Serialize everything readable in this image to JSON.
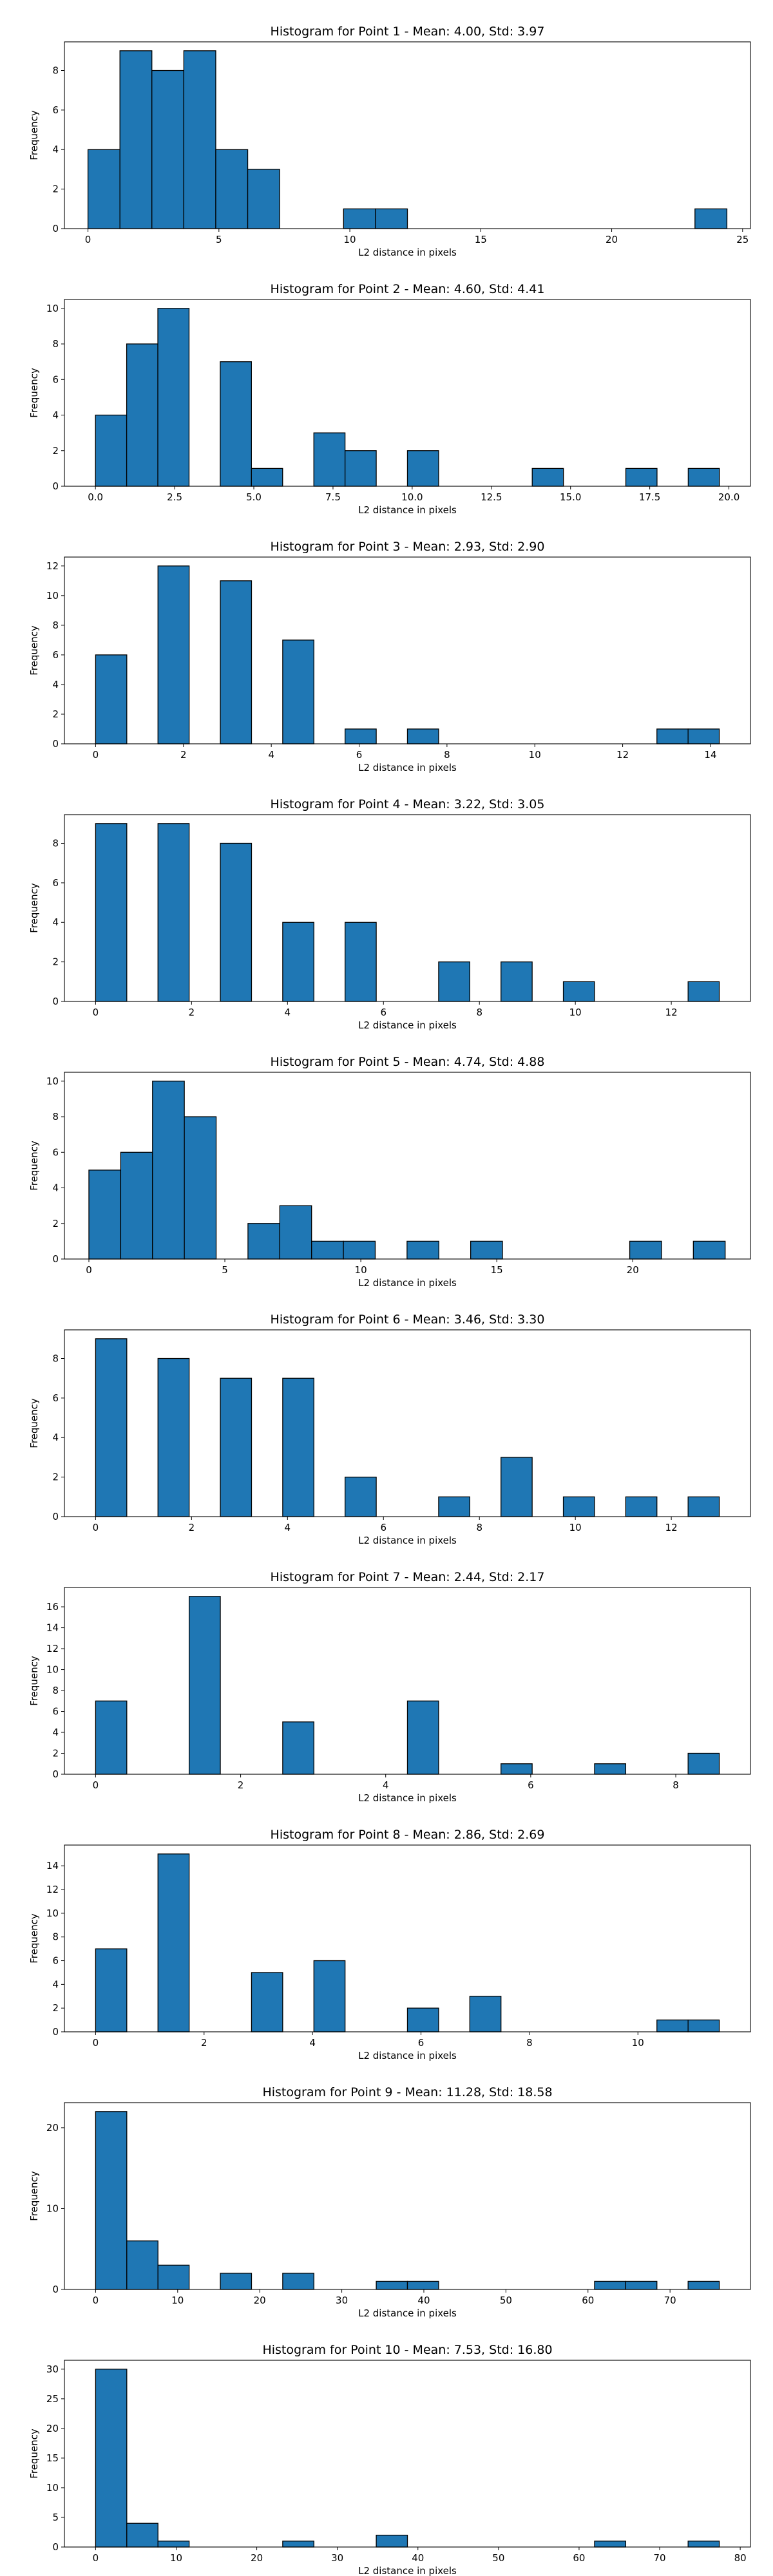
{
  "chart_data": [
    {
      "type": "bar",
      "title": "Histogram for Point 1 - Mean: 4.00, Std: 3.97",
      "xlabel": "L2 distance in pixels",
      "ylabel": "Frequency",
      "bin_start": 0,
      "bin_width": 1.22,
      "counts": [
        4,
        9,
        8,
        9,
        4,
        3,
        0,
        0,
        1,
        1,
        0,
        0,
        0,
        0,
        0,
        0,
        0,
        0,
        0,
        1
      ],
      "xlim": [
        -0.9,
        25.3
      ],
      "ylim": [
        0,
        9.45
      ],
      "xticks": [
        "0",
        "5",
        "10",
        "15",
        "20",
        "25"
      ],
      "yticks": [
        "0",
        "2",
        "4",
        "6",
        "8"
      ],
      "grid": false,
      "legend": "none",
      "color": "#1f77b4"
    },
    {
      "type": "bar",
      "title": "Histogram for Point 2 - Mean: 4.60, Std: 4.41",
      "xlabel": "L2 distance in pixels",
      "ylabel": "Frequency",
      "bin_start": 0,
      "bin_width": 0.985,
      "counts": [
        4,
        8,
        10,
        0,
        7,
        1,
        0,
        3,
        2,
        0,
        2,
        0,
        0,
        0,
        1,
        0,
        0,
        1,
        0,
        1
      ],
      "xlim": [
        -0.98,
        20.68
      ],
      "ylim": [
        0,
        10.5
      ],
      "xticks": [
        "0.0",
        "2.5",
        "5.0",
        "7.5",
        "10.0",
        "12.5",
        "15.0",
        "17.5",
        "20.0"
      ],
      "yticks": [
        "0",
        "2",
        "4",
        "6",
        "8",
        "10"
      ],
      "grid": false,
      "legend": "none",
      "color": "#1f77b4"
    },
    {
      "type": "bar",
      "title": "Histogram for Point 3 - Mean: 2.93, Std: 2.90",
      "xlabel": "L2 distance in pixels",
      "ylabel": "Frequency",
      "bin_start": 0,
      "bin_width": 0.71,
      "counts": [
        6,
        0,
        12,
        0,
        11,
        0,
        7,
        0,
        1,
        0,
        1,
        0,
        0,
        0,
        0,
        0,
        0,
        0,
        1,
        1
      ],
      "xlim": [
        -0.71,
        14.91
      ],
      "ylim": [
        0,
        12.6
      ],
      "xticks": [
        "0",
        "2",
        "4",
        "6",
        "8",
        "10",
        "12",
        "14"
      ],
      "yticks": [
        "0",
        "2",
        "4",
        "6",
        "8",
        "10",
        "12"
      ],
      "grid": false,
      "legend": "none",
      "color": "#1f77b4"
    },
    {
      "type": "bar",
      "title": "Histogram for Point 4 - Mean: 3.22, Std: 3.05",
      "xlabel": "L2 distance in pixels",
      "ylabel": "Frequency",
      "bin_start": 0,
      "bin_width": 0.65,
      "counts": [
        9,
        0,
        9,
        0,
        8,
        0,
        4,
        0,
        4,
        0,
        0,
        2,
        0,
        2,
        0,
        1,
        0,
        0,
        0,
        1
      ],
      "xlim": [
        -0.65,
        13.65
      ],
      "ylim": [
        0,
        9.45
      ],
      "xticks": [
        "0",
        "2",
        "4",
        "6",
        "8",
        "10",
        "12"
      ],
      "yticks": [
        "0",
        "2",
        "4",
        "6",
        "8"
      ],
      "grid": false,
      "legend": "none",
      "color": "#1f77b4"
    },
    {
      "type": "bar",
      "title": "Histogram for Point 5 - Mean: 4.74, Std: 4.88",
      "xlabel": "L2 distance in pixels",
      "ylabel": "Frequency",
      "bin_start": 0,
      "bin_width": 1.17,
      "counts": [
        5,
        6,
        10,
        8,
        0,
        2,
        3,
        1,
        1,
        0,
        1,
        0,
        1,
        0,
        0,
        0,
        0,
        1,
        0,
        1
      ],
      "xlim": [
        -0.9,
        24.33
      ],
      "ylim": [
        0,
        10.5
      ],
      "xticks": [
        "0",
        "5",
        "10",
        "15",
        "20"
      ],
      "yticks": [
        "0",
        "2",
        "4",
        "6",
        "8",
        "10"
      ],
      "grid": false,
      "legend": "none",
      "color": "#1f77b4"
    },
    {
      "type": "bar",
      "title": "Histogram for Point 6 - Mean: 3.46, Std: 3.30",
      "xlabel": "L2 distance in pixels",
      "ylabel": "Frequency",
      "bin_start": 0,
      "bin_width": 0.65,
      "counts": [
        9,
        0,
        8,
        0,
        7,
        0,
        7,
        0,
        2,
        0,
        0,
        1,
        0,
        3,
        0,
        1,
        0,
        1,
        0,
        1
      ],
      "xlim": [
        -0.65,
        13.65
      ],
      "ylim": [
        0,
        9.45
      ],
      "xticks": [
        "0",
        "2",
        "4",
        "6",
        "8",
        "10",
        "12"
      ],
      "yticks": [
        "0",
        "2",
        "4",
        "6",
        "8"
      ],
      "grid": false,
      "legend": "none",
      "color": "#1f77b4"
    },
    {
      "type": "bar",
      "title": "Histogram for Point 7 - Mean: 2.44, Std: 2.17",
      "xlabel": "L2 distance in pixels",
      "ylabel": "Frequency",
      "bin_start": 0,
      "bin_width": 0.43,
      "counts": [
        7,
        0,
        0,
        17,
        0,
        0,
        5,
        0,
        0,
        0,
        7,
        0,
        0,
        1,
        0,
        0,
        1,
        0,
        0,
        2
      ],
      "xlim": [
        -0.43,
        9.03
      ],
      "ylim": [
        0,
        17.85
      ],
      "xticks": [
        "0",
        "2",
        "4",
        "6",
        "8"
      ],
      "yticks": [
        "0",
        "2",
        "4",
        "6",
        "8",
        "10",
        "12",
        "14",
        "16"
      ],
      "grid": false,
      "legend": "none",
      "color": "#1f77b4"
    },
    {
      "type": "bar",
      "title": "Histogram for Point 8 - Mean: 2.86, Std: 2.69",
      "xlabel": "L2 distance in pixels",
      "ylabel": "Frequency",
      "bin_start": 0,
      "bin_width": 0.575,
      "counts": [
        7,
        0,
        15,
        0,
        0,
        5,
        0,
        6,
        0,
        0,
        2,
        0,
        3,
        0,
        0,
        0,
        0,
        0,
        1,
        1
      ],
      "xlim": [
        -0.575,
        12.075
      ],
      "ylim": [
        0,
        15.75
      ],
      "xticks": [
        "0",
        "2",
        "4",
        "6",
        "8",
        "10"
      ],
      "yticks": [
        "0",
        "2",
        "4",
        "6",
        "8",
        "10",
        "12",
        "14"
      ],
      "grid": false,
      "legend": "none",
      "color": "#1f77b4"
    },
    {
      "type": "bar",
      "title": "Histogram for Point 9 - Mean: 11.28, Std: 18.58",
      "xlabel": "L2 distance in pixels",
      "ylabel": "Frequency",
      "bin_start": 0,
      "bin_width": 3.8,
      "counts": [
        22,
        6,
        3,
        0,
        2,
        0,
        2,
        0,
        0,
        1,
        1,
        0,
        0,
        0,
        0,
        0,
        1,
        1,
        0,
        1
      ],
      "xlim": [
        -3.8,
        79.8
      ],
      "ylim": [
        0,
        23.1
      ],
      "xticks": [
        "0",
        "10",
        "20",
        "30",
        "40",
        "50",
        "60",
        "70"
      ],
      "yticks": [
        "0",
        "10",
        "20"
      ],
      "grid": false,
      "legend": "none",
      "color": "#1f77b4"
    },
    {
      "type": "bar",
      "title": "Histogram for Point 10 - Mean: 7.53, Std: 16.80",
      "xlabel": "L2 distance in pixels",
      "ylabel": "Frequency",
      "bin_start": 0,
      "bin_width": 3.87,
      "counts": [
        30,
        4,
        1,
        0,
        0,
        0,
        1,
        0,
        0,
        2,
        0,
        0,
        0,
        0,
        0,
        0,
        1,
        0,
        0,
        1
      ],
      "xlim": [
        -3.87,
        81.27
      ],
      "ylim": [
        0,
        31.5
      ],
      "xticks": [
        "0",
        "10",
        "20",
        "30",
        "40",
        "50",
        "60",
        "70",
        "80"
      ],
      "yticks": [
        "0",
        "5",
        "10",
        "15",
        "20",
        "25",
        "30"
      ],
      "grid": false,
      "legend": "none",
      "color": "#1f77b4"
    }
  ]
}
